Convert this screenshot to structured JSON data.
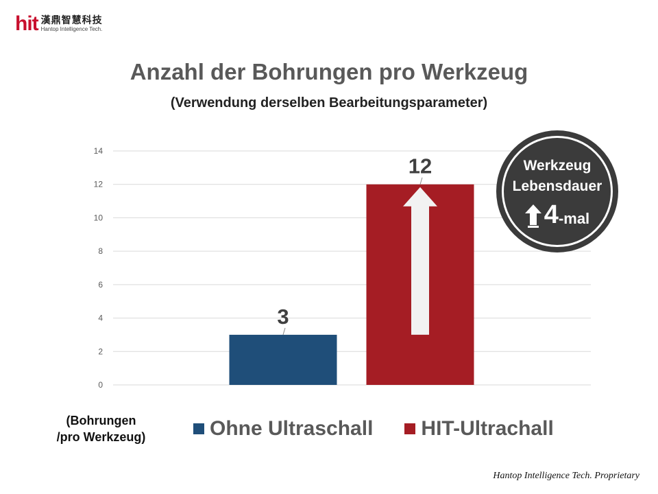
{
  "logo": {
    "mark": "hit",
    "cn": "漢鼎智慧科技",
    "en": "Hantop Intelligence Tech."
  },
  "header": {
    "title": "Anzahl der Bohrungen pro Werkzeug",
    "subtitle": "(Verwendung derselben Bearbeitungsparameter)"
  },
  "badge": {
    "line1": "Werkzeug",
    "line2": "Lebensdauer",
    "number": "4",
    "suffix": "-mal",
    "icon": "arrow-up-icon"
  },
  "footer": {
    "text": "Hantop Intelligence Tech. Proprietary"
  },
  "chart_data": {
    "type": "bar",
    "title": "Anzahl der Bohrungen pro Werkzeug",
    "subtitle": "(Verwendung derselben Bearbeitungsparameter)",
    "ylabel": "(Bohrungen /pro Werkzeug)",
    "ylabel_lines": [
      "(Bohrungen",
      "/pro Werkzeug)"
    ],
    "ylim": [
      0,
      14
    ],
    "yticks": [
      0,
      2,
      4,
      6,
      8,
      10,
      12,
      14
    ],
    "grid": true,
    "legend": "bottom",
    "series": [
      {
        "name": "Ohne Ultraschall",
        "value": 3,
        "color": "#1f4e79",
        "data_label": "3"
      },
      {
        "name": "HIT-Ultrachall",
        "value": 12,
        "color": "#a51d24",
        "data_label": "12"
      }
    ],
    "annotation": {
      "type": "arrow-up",
      "from": 3,
      "to": 12,
      "color": "#f2f2f2"
    }
  }
}
